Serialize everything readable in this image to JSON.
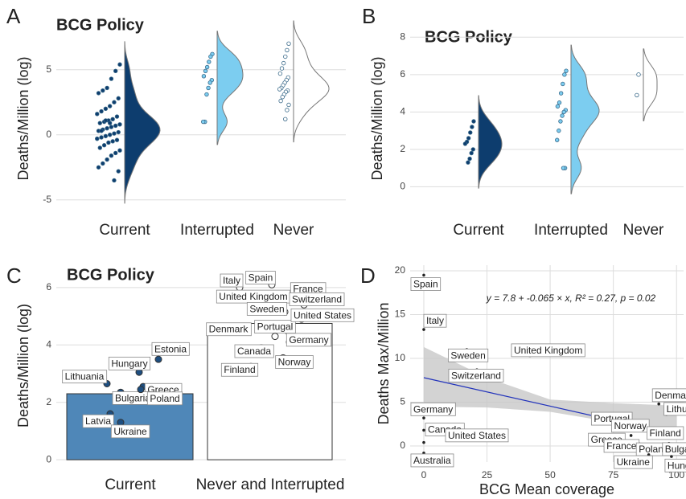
{
  "chart_data": [
    {
      "type": "violin",
      "label": "A",
      "title": "BCG Policy",
      "ylabel": "Deaths/Million (log)",
      "categories": [
        "Current",
        "Interrupted",
        "Never"
      ],
      "ylim": [
        -6,
        8.5
      ],
      "yticks": [
        -5,
        0,
        5
      ],
      "grid": true,
      "series": [
        {
          "color": "#0d3d6e",
          "values": [
            5.4,
            4.9,
            4.3,
            3.6,
            3.4,
            3.2,
            2.8,
            2.5,
            2.2,
            2.0,
            1.8,
            1.6,
            1.4,
            1.2,
            1.1,
            1.0,
            0.9,
            0.8,
            0.7,
            0.6,
            0.5,
            0.4,
            0.3,
            0.2,
            0.1,
            0.0,
            -0.1,
            -0.2,
            -0.3,
            -0.4,
            -0.5,
            -0.6,
            -0.8,
            -1.0,
            -1.2,
            -1.4,
            -1.6,
            -1.9,
            -2.2,
            -2.5,
            -2.8,
            -3.5,
            0.9,
            1.1,
            0.3,
            -0.3
          ]
        },
        {
          "color": "#7ccdf0",
          "values": [
            6.2,
            6.0,
            5.6,
            5.2,
            4.9,
            4.5,
            4.2,
            4.0,
            3.6,
            3.1,
            1.0,
            1.0
          ]
        },
        {
          "color": "#ffffff",
          "values": [
            7.0,
            6.5,
            6.0,
            5.5,
            5.1,
            4.7,
            4.4,
            4.2,
            4.0,
            3.8,
            3.6,
            3.5,
            3.4,
            3.3,
            3.1,
            2.9,
            2.6,
            2.3,
            1.9,
            1.2
          ]
        }
      ]
    },
    {
      "type": "violin",
      "label": "B",
      "title": "BCG Policy",
      "ylabel": "Deaths/Million (log)",
      "categories": [
        "Current",
        "Interrupted",
        "Never"
      ],
      "ylim": [
        -1.4,
        8.7
      ],
      "yticks": [
        0,
        2,
        4,
        6,
        8
      ],
      "grid": true,
      "series": [
        {
          "color": "#0d3d6e",
          "values": [
            3.5,
            3.2,
            2.9,
            2.6,
            2.4,
            2.3,
            2.0,
            1.8,
            1.5,
            1.3
          ]
        },
        {
          "color": "#7ccdf0",
          "values": [
            6.2,
            6.0,
            5.5,
            5.0,
            4.5,
            4.3,
            4.1,
            4.0,
            3.8,
            3.5,
            3.0,
            2.5,
            1.0,
            1.0
          ]
        },
        {
          "color": "#ffffff",
          "values": [
            6.0,
            4.9
          ]
        }
      ]
    },
    {
      "type": "bar",
      "label": "C",
      "title": "BCG Policy",
      "ylabel": "Deaths/Million (log)",
      "categories": [
        "Current",
        "Never and Interrupted"
      ],
      "values": [
        2.3,
        4.75
      ],
      "colors": [
        "#4f87b8",
        "#ffffff"
      ],
      "ylim": [
        -0.22,
        6.78
      ],
      "yticks": [
        0,
        2,
        4,
        6
      ],
      "grid": true,
      "point_labels": [
        [
          "Estonia",
          "Hungary",
          "Lithuania",
          "Greece",
          "Bulgaria",
          "Poland",
          "Latvia",
          "Ukraine"
        ],
        [
          "Italy",
          "Spain",
          "France",
          "United Kingdom",
          "Switzerland",
          "Sweden",
          "Portugal",
          "United States",
          "Denmark",
          "Canada",
          "Germany",
          "Norway",
          "Finland"
        ]
      ],
      "point_values": [
        [
          3.5,
          3.05,
          2.65,
          2.55,
          2.35,
          2.45,
          1.6,
          1.3
        ],
        [
          6.0,
          6.1,
          5.7,
          5.55,
          5.4,
          5.15,
          4.5,
          4.9,
          4.3,
          3.9,
          4.1,
          3.55,
          3.25
        ]
      ]
    },
    {
      "type": "scatter",
      "label": "D",
      "ylabel": "Deaths Max/Million",
      "xlabel": "BCG Mean coverage",
      "annotation": "y = 7.8 + -0.065 × x,  R² = 0.27,  p = 0.02",
      "fit": {
        "intercept": 7.8,
        "slope": -0.065
      },
      "ci": {
        "x": [
          0,
          25,
          50,
          75,
          100
        ],
        "lower": [
          4.5,
          4.4,
          3.9,
          2.7,
          0.8
        ],
        "upper": [
          11.3,
          7.8,
          5.3,
          4.9,
          4.6
        ]
      },
      "xlim": [
        -5.4,
        102.8
      ],
      "ylim": [
        -1.83,
        20.64
      ],
      "xticks": [
        0,
        25,
        50,
        75,
        100
      ],
      "yticks": [
        0,
        5,
        10,
        15,
        20
      ],
      "grid": true,
      "labels": [
        "Spain",
        "Italy",
        "Sweden",
        "United Kingdom",
        "Switzerland",
        "Germany",
        "Canada",
        "United States",
        "Australia",
        "Portugal",
        "Denmark",
        "Norway",
        "Lithuania",
        "Finland",
        "Greece",
        "France",
        "Poland",
        "Bulgaria",
        "Ukraine",
        "Hungary"
      ],
      "x": [
        0,
        0,
        17,
        42,
        21,
        0,
        0,
        0,
        0,
        80,
        93,
        88,
        96,
        95,
        82,
        85,
        93,
        97,
        89,
        98
      ],
      "values": [
        19.5,
        13.3,
        11.0,
        10.3,
        8.7,
        3.2,
        1.8,
        0.4,
        -0.8,
        3.5,
        4.8,
        2.6,
        3.6,
        1.4,
        1.2,
        0.3,
        0.1,
        0.3,
        -1.0,
        -1.2
      ]
    }
  ]
}
